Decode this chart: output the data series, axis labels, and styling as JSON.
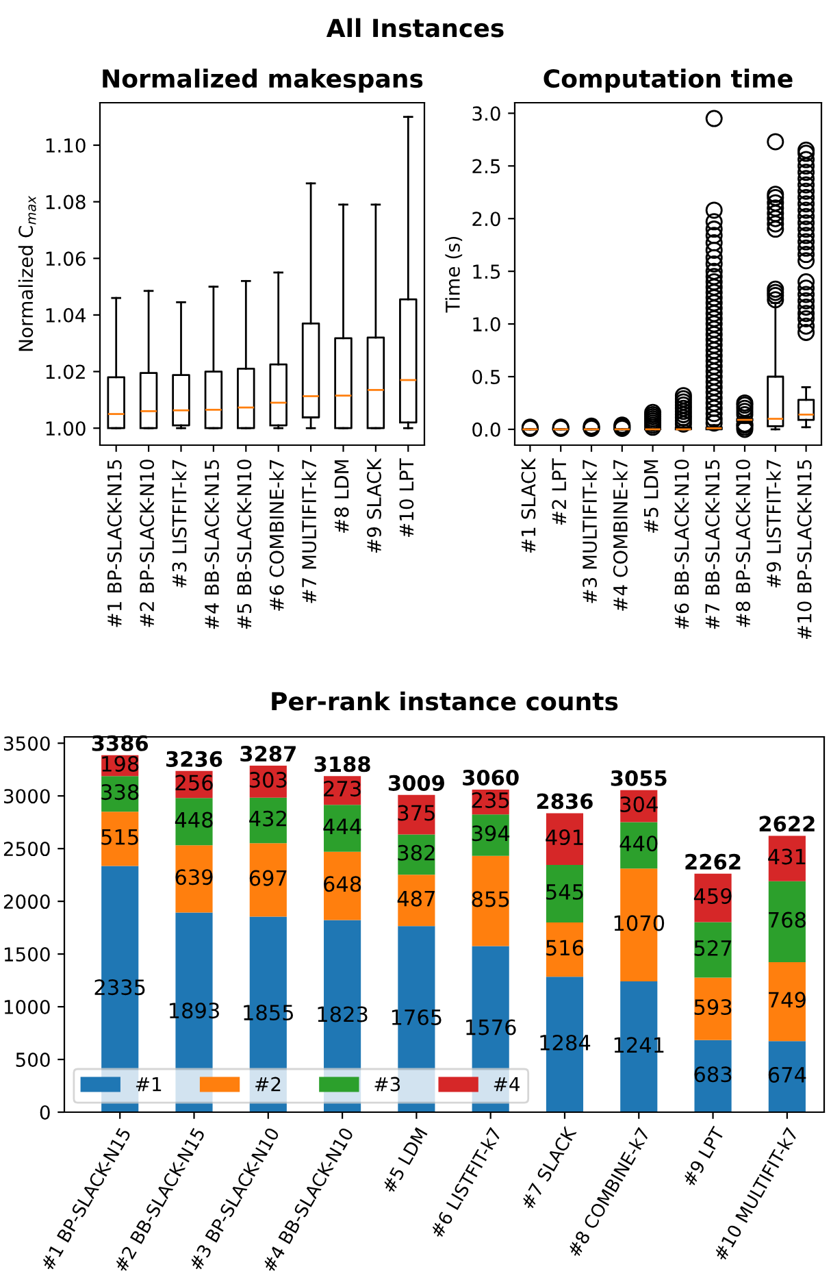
{
  "chart_data": [
    {
      "type": "box",
      "title": "Normalized makespans",
      "ylabel": "Normalized C$_{max}$",
      "annotations": [
        "All Instances"
      ],
      "categories": [
        "#1 BP-SLACK-N15",
        "#2 BP-SLACK-N10",
        "#3 LISTFIT-k7",
        "#4 BB-SLACK-N15",
        "#5 BB-SLACK-N10",
        "#6 COMBINE-k7",
        "#7 MULTIFIT-k7",
        "#8 LDM",
        "#9 SLACK",
        "#10 LPT"
      ],
      "boxes": [
        {
          "low": 1.0,
          "q1": 1.0,
          "median": 1.005,
          "q3": 1.018,
          "high": 1.046
        },
        {
          "low": 1.0,
          "q1": 1.0,
          "median": 1.006,
          "q3": 1.0195,
          "high": 1.0485
        },
        {
          "low": 1.0,
          "q1": 1.001,
          "median": 1.0063,
          "q3": 1.0188,
          "high": 1.0445
        },
        {
          "low": 1.0,
          "q1": 1.0,
          "median": 1.0065,
          "q3": 1.02,
          "high": 1.05
        },
        {
          "low": 1.0,
          "q1": 1.0,
          "median": 1.0073,
          "q3": 1.021,
          "high": 1.052
        },
        {
          "low": 1.0,
          "q1": 1.001,
          "median": 1.009,
          "q3": 1.0225,
          "high": 1.055
        },
        {
          "low": 1.0,
          "q1": 1.0038,
          "median": 1.0113,
          "q3": 1.037,
          "high": 1.0865
        },
        {
          "low": 1.0,
          "q1": 1.0,
          "median": 1.0115,
          "q3": 1.0318,
          "high": 1.079
        },
        {
          "low": 1.0,
          "q1": 1.0,
          "median": 1.0135,
          "q3": 1.032,
          "high": 1.079
        },
        {
          "low": 1.0,
          "q1": 1.002,
          "median": 1.017,
          "q3": 1.0455,
          "high": 1.11
        }
      ],
      "ylim": [
        0.994,
        1.115
      ],
      "yticks": [
        {
          "value": 1.0,
          "label": "1.00"
        },
        {
          "value": 1.02,
          "label": "1.02"
        },
        {
          "value": 1.04,
          "label": "1.04"
        },
        {
          "value": 1.06,
          "label": "1.06"
        },
        {
          "value": 1.08,
          "label": "1.08"
        },
        {
          "value": 1.1,
          "label": "1.10"
        }
      ]
    },
    {
      "type": "box",
      "title": "Computation time",
      "ylabel": "Time (s)",
      "categories": [
        "#1 SLACK",
        "#2 LPT",
        "#3 MULTIFIT-k7",
        "#4 COMBINE-k7",
        "#5 LDM",
        "#6 BB-SLACK-N10",
        "#7 BB-SLACK-N15",
        "#8 BP-SLACK-N10",
        "#9 LISTFIT-k7",
        "#10 BP-SLACK-N15"
      ],
      "boxes": [
        {
          "low": 0.0,
          "q1": 0.0,
          "median": 0.0,
          "q3": 0.0,
          "high": 0.0,
          "outliers": [
            0.01,
            0.02
          ]
        },
        {
          "low": 0.0,
          "q1": 0.0,
          "median": 0.0,
          "q3": 0.0,
          "high": 0.0,
          "outliers": [
            0.01,
            0.02
          ]
        },
        {
          "low": 0.0,
          "q1": 0.0,
          "median": 0.0,
          "q3": 0.0,
          "high": 0.0,
          "outliers": [
            0.01,
            0.02,
            0.03
          ]
        },
        {
          "low": 0.0,
          "q1": 0.0,
          "median": 0.0,
          "q3": 0.0,
          "high": 0.0,
          "outliers": [
            0.01,
            0.02,
            0.03,
            0.04
          ]
        },
        {
          "low": 0.0,
          "q1": 0.0,
          "median": 0.0,
          "q3": 0.0,
          "high": 0.0,
          "outliers": [
            0.02,
            0.04,
            0.06,
            0.08,
            0.1,
            0.12,
            0.14,
            0.16
          ]
        },
        {
          "low": 0.0,
          "q1": 0.0,
          "median": 0.0,
          "q3": 0.02,
          "high": 0.04,
          "outliers": [
            0.05,
            0.08,
            0.11,
            0.14,
            0.17,
            0.2,
            0.23,
            0.26,
            0.29,
            0.32
          ]
        },
        {
          "low": 0.0,
          "q1": 0.0,
          "median": 0.01,
          "q3": 0.02,
          "high": 0.04,
          "outliers": [
            0.06,
            0.1,
            0.15,
            0.2,
            0.25,
            0.3,
            0.35,
            0.4,
            0.45,
            0.5,
            0.55,
            0.6,
            0.65,
            0.7,
            0.75,
            0.8,
            0.85,
            0.9,
            0.95,
            1.0,
            1.05,
            1.1,
            1.15,
            1.2,
            1.25,
            1.3,
            1.35,
            1.4,
            1.45,
            1.5,
            1.57,
            1.63,
            1.7,
            1.77,
            1.84,
            1.9,
            1.97,
            2.08,
            2.95
          ]
        },
        {
          "low": 0.06,
          "q1": 0.08,
          "median": 0.09,
          "q3": 0.1,
          "high": 0.12,
          "outliers": [
            0.0,
            0.02,
            0.04,
            0.05,
            0.14,
            0.17,
            0.2,
            0.23,
            0.25
          ]
        },
        {
          "low": 0.0,
          "q1": 0.03,
          "median": 0.1,
          "q3": 0.5,
          "high": 1.2,
          "outliers": [
            1.23,
            1.27,
            1.3,
            1.33,
            1.9,
            1.95,
            2.0,
            2.05,
            2.1,
            2.15,
            2.2,
            2.23,
            2.73
          ]
        },
        {
          "low": 0.02,
          "q1": 0.09,
          "median": 0.14,
          "q3": 0.28,
          "high": 0.4,
          "outliers": [
            0.92,
            0.98,
            1.05,
            1.1,
            1.16,
            1.22,
            1.28,
            1.34,
            1.4,
            1.6,
            1.66,
            1.72,
            1.78,
            1.84,
            1.9,
            1.96,
            2.02,
            2.08,
            2.14,
            2.2,
            2.26,
            2.32,
            2.38,
            2.44,
            2.5,
            2.56,
            2.62,
            2.65
          ]
        }
      ],
      "ylim": [
        -0.15,
        3.1
      ],
      "yticks": [
        {
          "value": 0,
          "label": "0.0"
        },
        {
          "value": 0.5,
          "label": "0.5"
        },
        {
          "value": 1,
          "label": "1.0"
        },
        {
          "value": 1.5,
          "label": "1.5"
        },
        {
          "value": 2,
          "label": "2.0"
        },
        {
          "value": 2.5,
          "label": "2.5"
        },
        {
          "value": 3,
          "label": "3.0"
        }
      ]
    },
    {
      "type": "bar",
      "title": "Per-rank instance counts",
      "stacked": true,
      "data_labels": true,
      "legend": "bottom left",
      "categories": [
        "#1 BP-SLACK-N15",
        "#2 BB-SLACK-N15",
        "#3 BP-SLACK-N10",
        "#4 BB-SLACK-N10",
        "#5 LDM",
        "#6 LISTFIT-k7",
        "#7 SLACK",
        "#8 COMBINE-k7",
        "#9 LPT",
        "#10 MULTIFIT-k7"
      ],
      "series": [
        {
          "name": "#1",
          "color": "#1f77b4",
          "values": [
            2335,
            1893,
            1855,
            1823,
            1765,
            1576,
            1284,
            1241,
            683,
            674
          ]
        },
        {
          "name": "#2",
          "color": "#ff7f0e",
          "values": [
            515,
            639,
            697,
            648,
            487,
            855,
            516,
            1070,
            593,
            749
          ]
        },
        {
          "name": "#3",
          "color": "#2ca02c",
          "values": [
            338,
            448,
            432,
            444,
            382,
            394,
            545,
            440,
            527,
            768
          ]
        },
        {
          "name": "#4",
          "color": "#d62728",
          "values": [
            198,
            256,
            303,
            273,
            375,
            235,
            491,
            304,
            459,
            431
          ]
        }
      ],
      "totals": [
        "3386",
        "3236",
        "3287",
        "3188",
        "3009",
        "3060",
        "2836",
        "3055",
        "2262",
        "2622"
      ],
      "ylim": [
        0,
        3560
      ],
      "yticks": [
        0,
        500,
        1000,
        1500,
        2000,
        2500,
        3000,
        3500
      ]
    }
  ]
}
